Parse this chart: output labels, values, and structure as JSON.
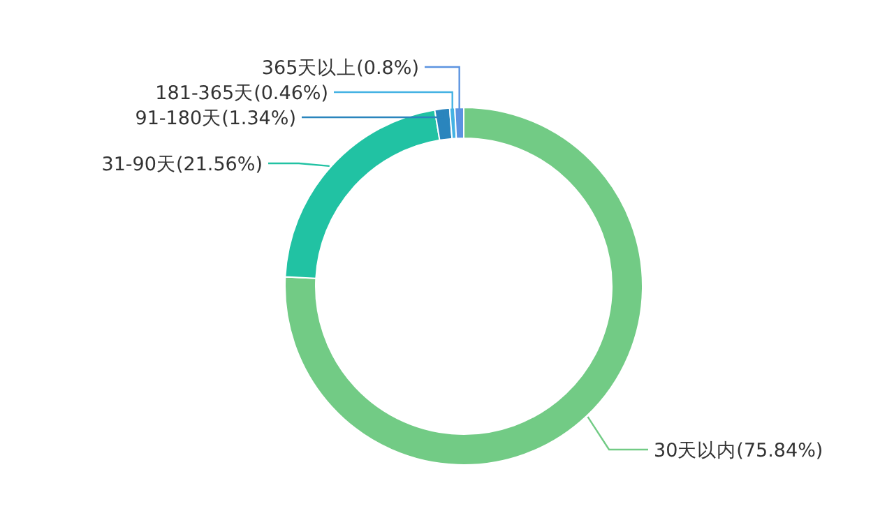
{
  "chart_data": {
    "type": "donut",
    "categories": [
      "30天以内",
      "31-90天",
      "91-180天",
      "181-365天",
      "365天以上"
    ],
    "values": [
      75.84,
      21.56,
      1.34,
      0.46,
      0.8
    ],
    "value_labels": [
      "(75.84%)",
      "(21.56%)",
      "(1.34%)",
      "(0.46%)",
      "(0.8%)"
    ],
    "colors": [
      "#72cb85",
      "#21c2a3",
      "#2a85bd",
      "#44b2e3",
      "#5b93e0"
    ]
  }
}
